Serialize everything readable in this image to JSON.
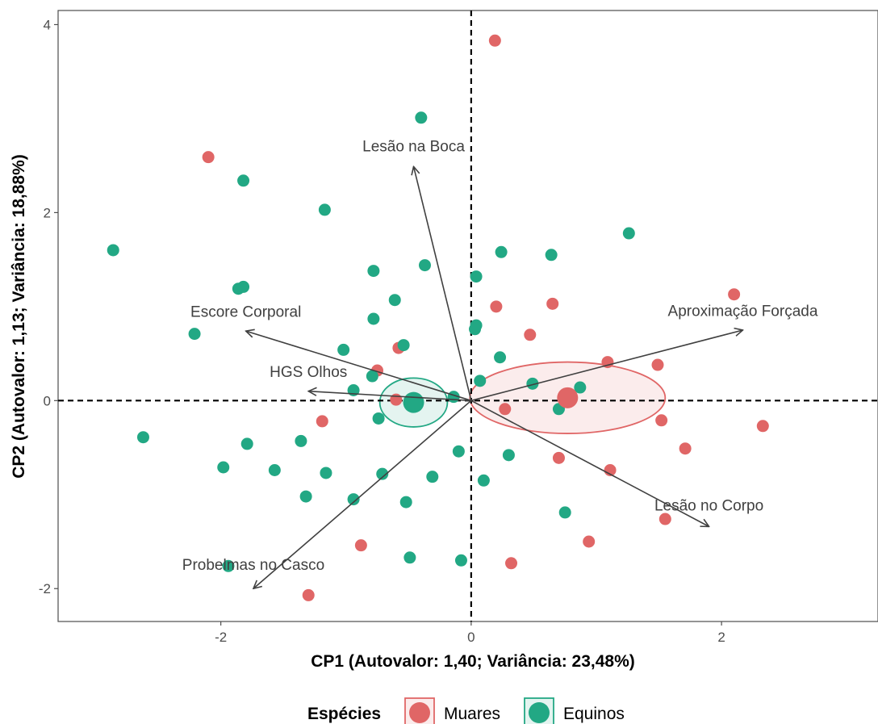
{
  "chart_data": {
    "type": "scatter",
    "title": "",
    "xlabel": "CP1 (Autovalor: 1,40; Variância: 23,48%)",
    "ylabel": "CP2 (Autovalor: 1,13; Variância: 18,88%)",
    "xlim": [
      -3.3,
      3.25
    ],
    "ylim": [
      -2.35,
      4.15
    ],
    "xticks": [
      -2,
      0,
      2
    ],
    "yticks": [
      -2,
      0,
      2,
      4
    ],
    "grid": false,
    "reference_lines": {
      "x": 0,
      "y": 0,
      "style": "dashed"
    },
    "legend": {
      "title": "Espécies",
      "position": "bottom"
    },
    "series": [
      {
        "name": "Muares",
        "color": "#E06666",
        "points": [
          [
            0.19,
            3.83
          ],
          [
            -2.1,
            2.59
          ],
          [
            2.1,
            1.13
          ],
          [
            0.2,
            1.0
          ],
          [
            0.65,
            1.03
          ],
          [
            0.47,
            0.7
          ],
          [
            -0.58,
            0.56
          ],
          [
            -0.75,
            0.32
          ],
          [
            1.09,
            0.41
          ],
          [
            1.49,
            0.38
          ],
          [
            -0.6,
            0.01
          ],
          [
            0.27,
            -0.09
          ],
          [
            -1.19,
            -0.22
          ],
          [
            1.52,
            -0.21
          ],
          [
            2.33,
            -0.27
          ],
          [
            1.71,
            -0.51
          ],
          [
            0.7,
            -0.61
          ],
          [
            1.11,
            -0.74
          ],
          [
            1.55,
            -1.26
          ],
          [
            0.94,
            -1.5
          ],
          [
            -0.88,
            -1.54
          ],
          [
            0.32,
            -1.73
          ],
          [
            -1.3,
            -2.07
          ]
        ],
        "centroid": [
          0.77,
          0.03
        ],
        "ellipse": {
          "center": [
            0.77,
            0.03
          ],
          "rx": 0.78,
          "ry": 0.38
        }
      },
      {
        "name": "Equinos",
        "color": "#22A884",
        "points": [
          [
            -0.4,
            3.01
          ],
          [
            -1.82,
            2.34
          ],
          [
            -1.17,
            2.03
          ],
          [
            -2.86,
            1.6
          ],
          [
            1.26,
            1.78
          ],
          [
            0.24,
            1.58
          ],
          [
            0.64,
            1.55
          ],
          [
            -0.37,
            1.44
          ],
          [
            -0.78,
            1.38
          ],
          [
            0.04,
            1.32
          ],
          [
            -1.86,
            1.19
          ],
          [
            -1.82,
            1.21
          ],
          [
            -0.61,
            1.07
          ],
          [
            -0.78,
            0.87
          ],
          [
            0.04,
            0.8
          ],
          [
            0.03,
            0.76
          ],
          [
            -2.21,
            0.71
          ],
          [
            -0.54,
            0.59
          ],
          [
            -1.02,
            0.54
          ],
          [
            0.23,
            0.46
          ],
          [
            -0.79,
            0.26
          ],
          [
            0.07,
            0.21
          ],
          [
            0.49,
            0.18
          ],
          [
            0.87,
            0.14
          ],
          [
            -0.94,
            0.11
          ],
          [
            -0.14,
            0.04
          ],
          [
            0.7,
            -0.09
          ],
          [
            -0.74,
            -0.19
          ],
          [
            -2.62,
            -0.39
          ],
          [
            -1.79,
            -0.46
          ],
          [
            -1.36,
            -0.43
          ],
          [
            -0.1,
            -0.54
          ],
          [
            0.3,
            -0.58
          ],
          [
            -1.98,
            -0.71
          ],
          [
            -1.57,
            -0.74
          ],
          [
            -1.16,
            -0.77
          ],
          [
            -0.71,
            -0.78
          ],
          [
            -0.31,
            -0.81
          ],
          [
            0.1,
            -0.85
          ],
          [
            -1.32,
            -1.02
          ],
          [
            -0.94,
            -1.05
          ],
          [
            -0.52,
            -1.08
          ],
          [
            0.75,
            -1.19
          ],
          [
            -1.94,
            -1.76
          ],
          [
            -0.49,
            -1.67
          ],
          [
            -0.08,
            -1.7
          ]
        ],
        "centroid": [
          -0.46,
          -0.02
        ],
        "ellipse": {
          "center": [
            -0.46,
            -0.02
          ],
          "rx": 0.27,
          "ry": 0.26
        }
      }
    ],
    "loadings": [
      {
        "name": "Lesão na Boca",
        "x": -0.46,
        "y": 2.49
      },
      {
        "name": "Escore Corporal",
        "x": -1.8,
        "y": 0.74
      },
      {
        "name": "Aproximação Forçada",
        "x": 2.17,
        "y": 0.75
      },
      {
        "name": "HGS Olhos",
        "x": -1.3,
        "y": 0.1
      },
      {
        "name": "Lesão no Corpo",
        "x": 1.9,
        "y": -1.34
      },
      {
        "name": "Probelmas no Casco",
        "x": -1.74,
        "y": -2.0
      }
    ],
    "loading_label_positions": [
      {
        "name": "Lesão na Boca",
        "x": -0.46,
        "y": 2.65
      },
      {
        "name": "Escore Corporal",
        "x": -1.8,
        "y": 0.89
      },
      {
        "name": "Aproximação Forçada",
        "x": 2.17,
        "y": 0.9
      },
      {
        "name": "HGS Olhos",
        "x": -1.3,
        "y": 0.25
      },
      {
        "name": "Lesão no Corpo",
        "x": 1.9,
        "y": -1.17
      },
      {
        "name": "Probelmas no Casco",
        "x": -1.74,
        "y": -1.8
      }
    ]
  }
}
